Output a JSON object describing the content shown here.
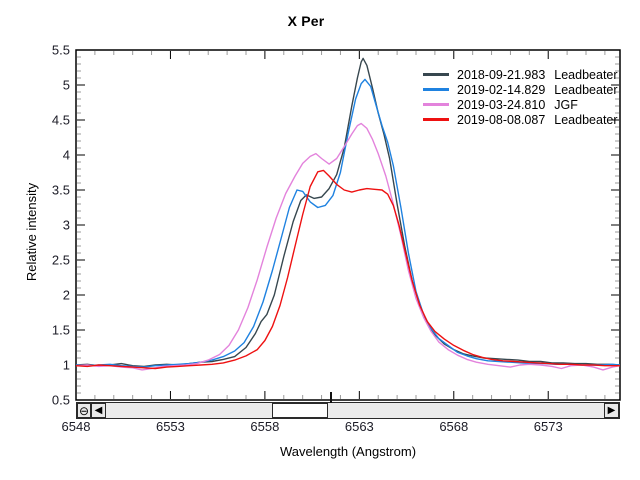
{
  "chart_data": {
    "type": "line",
    "title": "X Per",
    "xlabel": "Wavelength (Angstrom)",
    "ylabel": "Relative intensity",
    "xlim": [
      6548,
      6576.8
    ],
    "ylim": [
      0.5,
      5.5
    ],
    "x_ticks_major": [
      6548,
      6553,
      6558,
      6563,
      6568,
      6573
    ],
    "x_tick_minor_step": 1,
    "y_ticks_major": [
      0.5,
      1,
      1.5,
      2,
      2.5,
      3,
      3.5,
      4,
      4.5,
      5,
      5.5
    ],
    "y_tick_minor_step": 0.1,
    "grid": false,
    "legend_position": "top-right",
    "series": [
      {
        "name": "2018-09-21.983",
        "observer": "Leadbeater",
        "color": "#37474f",
        "points": [
          [
            6548.0,
            1.0
          ],
          [
            6548.6,
            1.01
          ],
          [
            6549.2,
            0.99
          ],
          [
            6549.8,
            1.0
          ],
          [
            6550.4,
            1.02
          ],
          [
            6551.0,
            0.99
          ],
          [
            6551.6,
            0.98
          ],
          [
            6552.2,
            1.0
          ],
          [
            6552.8,
            1.01
          ],
          [
            6553.4,
            1.0
          ],
          [
            6554.0,
            1.02
          ],
          [
            6554.6,
            1.04
          ],
          [
            6555.2,
            1.05
          ],
          [
            6555.8,
            1.08
          ],
          [
            6556.4,
            1.12
          ],
          [
            6557.0,
            1.25
          ],
          [
            6557.5,
            1.45
          ],
          [
            6557.8,
            1.62
          ],
          [
            6558.1,
            1.72
          ],
          [
            6558.5,
            2.0
          ],
          [
            6559.0,
            2.55
          ],
          [
            6559.5,
            3.05
          ],
          [
            6559.9,
            3.35
          ],
          [
            6560.2,
            3.43
          ],
          [
            6560.6,
            3.38
          ],
          [
            6561.0,
            3.4
          ],
          [
            6561.4,
            3.52
          ],
          [
            6561.8,
            3.72
          ],
          [
            6562.2,
            4.1
          ],
          [
            6562.6,
            4.7
          ],
          [
            6562.9,
            5.1
          ],
          [
            6563.1,
            5.33
          ],
          [
            6563.2,
            5.38
          ],
          [
            6563.4,
            5.28
          ],
          [
            6563.7,
            4.95
          ],
          [
            6564.0,
            4.6
          ],
          [
            6564.3,
            4.3
          ],
          [
            6564.6,
            3.95
          ],
          [
            6565.0,
            3.3
          ],
          [
            6565.4,
            2.7
          ],
          [
            6565.8,
            2.2
          ],
          [
            6566.2,
            1.85
          ],
          [
            6566.6,
            1.6
          ],
          [
            6567.0,
            1.43
          ],
          [
            6567.5,
            1.3
          ],
          [
            6568.0,
            1.22
          ],
          [
            6568.5,
            1.16
          ],
          [
            6569.0,
            1.13
          ],
          [
            6569.6,
            1.1
          ],
          [
            6570.2,
            1.09
          ],
          [
            6570.8,
            1.08
          ],
          [
            6571.4,
            1.07
          ],
          [
            6572.0,
            1.05
          ],
          [
            6572.6,
            1.05
          ],
          [
            6573.2,
            1.03
          ],
          [
            6573.8,
            1.03
          ],
          [
            6574.4,
            1.02
          ],
          [
            6575.0,
            1.02
          ],
          [
            6575.6,
            1.01
          ],
          [
            6576.2,
            1.01
          ],
          [
            6576.8,
            1.0
          ]
        ]
      },
      {
        "name": "2019-02-14.829",
        "observer": "Leadbeater",
        "color": "#1f82e0",
        "points": [
          [
            6548.0,
            1.0
          ],
          [
            6548.6,
            0.99
          ],
          [
            6549.2,
            1.0
          ],
          [
            6549.8,
            1.01
          ],
          [
            6550.4,
            0.99
          ],
          [
            6551.0,
            0.98
          ],
          [
            6551.6,
            0.97
          ],
          [
            6552.2,
            0.99
          ],
          [
            6552.8,
            1.0
          ],
          [
            6553.4,
            1.01
          ],
          [
            6554.0,
            1.02
          ],
          [
            6554.6,
            1.04
          ],
          [
            6555.2,
            1.07
          ],
          [
            6555.8,
            1.12
          ],
          [
            6556.4,
            1.2
          ],
          [
            6556.9,
            1.32
          ],
          [
            6557.4,
            1.55
          ],
          [
            6557.9,
            1.9
          ],
          [
            6558.4,
            2.35
          ],
          [
            6558.9,
            2.85
          ],
          [
            6559.3,
            3.25
          ],
          [
            6559.7,
            3.5
          ],
          [
            6560.0,
            3.48
          ],
          [
            6560.4,
            3.33
          ],
          [
            6560.8,
            3.25
          ],
          [
            6561.2,
            3.28
          ],
          [
            6561.6,
            3.42
          ],
          [
            6562.0,
            3.75
          ],
          [
            6562.4,
            4.3
          ],
          [
            6562.8,
            4.8
          ],
          [
            6563.1,
            5.02
          ],
          [
            6563.3,
            5.08
          ],
          [
            6563.6,
            4.98
          ],
          [
            6563.9,
            4.7
          ],
          [
            6564.2,
            4.42
          ],
          [
            6564.5,
            4.18
          ],
          [
            6564.8,
            3.85
          ],
          [
            6565.2,
            3.25
          ],
          [
            6565.6,
            2.6
          ],
          [
            6566.0,
            2.05
          ],
          [
            6566.4,
            1.72
          ],
          [
            6566.8,
            1.52
          ],
          [
            6567.2,
            1.38
          ],
          [
            6567.7,
            1.28
          ],
          [
            6568.2,
            1.18
          ],
          [
            6568.7,
            1.13
          ],
          [
            6569.2,
            1.09
          ],
          [
            6569.8,
            1.06
          ],
          [
            6570.4,
            1.05
          ],
          [
            6571.0,
            1.04
          ],
          [
            6571.6,
            1.03
          ],
          [
            6572.2,
            1.02
          ],
          [
            6572.8,
            1.02
          ],
          [
            6573.4,
            1.01
          ],
          [
            6574.0,
            1.01
          ],
          [
            6574.6,
            1.0
          ],
          [
            6575.2,
            1.0
          ],
          [
            6575.8,
            1.0
          ],
          [
            6576.4,
            1.01
          ],
          [
            6576.8,
            1.0
          ]
        ]
      },
      {
        "name": "2019-03-24.810",
        "observer": "JGF",
        "color": "#e383dc",
        "points": [
          [
            6548.0,
            0.99
          ],
          [
            6548.6,
            1.0
          ],
          [
            6549.2,
            0.98
          ],
          [
            6549.8,
            0.99
          ],
          [
            6550.4,
            0.97
          ],
          [
            6551.0,
            0.96
          ],
          [
            6551.5,
            0.93
          ],
          [
            6552.0,
            0.95
          ],
          [
            6552.6,
            0.98
          ],
          [
            6553.2,
            0.99
          ],
          [
            6553.8,
            1.0
          ],
          [
            6554.4,
            1.02
          ],
          [
            6555.0,
            1.07
          ],
          [
            6555.6,
            1.15
          ],
          [
            6556.1,
            1.28
          ],
          [
            6556.6,
            1.5
          ],
          [
            6557.1,
            1.82
          ],
          [
            6557.6,
            2.22
          ],
          [
            6558.1,
            2.68
          ],
          [
            6558.6,
            3.1
          ],
          [
            6559.1,
            3.45
          ],
          [
            6559.6,
            3.7
          ],
          [
            6560.0,
            3.88
          ],
          [
            6560.4,
            3.98
          ],
          [
            6560.7,
            4.02
          ],
          [
            6561.0,
            3.95
          ],
          [
            6561.4,
            3.87
          ],
          [
            6561.8,
            3.95
          ],
          [
            6562.2,
            4.12
          ],
          [
            6562.6,
            4.3
          ],
          [
            6562.9,
            4.42
          ],
          [
            6563.1,
            4.45
          ],
          [
            6563.4,
            4.38
          ],
          [
            6563.7,
            4.22
          ],
          [
            6564.0,
            4.02
          ],
          [
            6564.4,
            3.7
          ],
          [
            6564.8,
            3.3
          ],
          [
            6565.2,
            2.85
          ],
          [
            6565.6,
            2.35
          ],
          [
            6566.0,
            1.95
          ],
          [
            6566.4,
            1.68
          ],
          [
            6566.8,
            1.48
          ],
          [
            6567.2,
            1.33
          ],
          [
            6567.7,
            1.22
          ],
          [
            6568.2,
            1.14
          ],
          [
            6568.7,
            1.08
          ],
          [
            6569.2,
            1.04
          ],
          [
            6569.8,
            1.01
          ],
          [
            6570.4,
            0.99
          ],
          [
            6571.0,
            0.97
          ],
          [
            6571.5,
            1.0
          ],
          [
            6572.0,
            1.01
          ],
          [
            6572.6,
            1.0
          ],
          [
            6573.2,
            0.98
          ],
          [
            6573.7,
            0.95
          ],
          [
            6574.2,
            0.99
          ],
          [
            6574.8,
            1.0
          ],
          [
            6575.4,
            0.97
          ],
          [
            6575.9,
            0.93
          ],
          [
            6576.4,
            0.97
          ],
          [
            6576.8,
            0.99
          ]
        ]
      },
      {
        "name": "2019-08-08.087",
        "observer": "Leadbeater",
        "color": "#ee1111",
        "points": [
          [
            6548.0,
            0.99
          ],
          [
            6548.6,
            0.98
          ],
          [
            6549.2,
            1.0
          ],
          [
            6549.8,
            0.99
          ],
          [
            6550.4,
            0.98
          ],
          [
            6551.0,
            0.97
          ],
          [
            6551.6,
            0.96
          ],
          [
            6552.2,
            0.95
          ],
          [
            6552.8,
            0.97
          ],
          [
            6553.4,
            0.98
          ],
          [
            6554.0,
            0.99
          ],
          [
            6554.6,
            1.0
          ],
          [
            6555.2,
            1.01
          ],
          [
            6555.8,
            1.03
          ],
          [
            6556.4,
            1.07
          ],
          [
            6557.0,
            1.13
          ],
          [
            6557.6,
            1.22
          ],
          [
            6558.0,
            1.35
          ],
          [
            6558.4,
            1.55
          ],
          [
            6558.8,
            1.85
          ],
          [
            6559.2,
            2.25
          ],
          [
            6559.6,
            2.7
          ],
          [
            6560.0,
            3.15
          ],
          [
            6560.4,
            3.55
          ],
          [
            6560.8,
            3.76
          ],
          [
            6561.1,
            3.78
          ],
          [
            6561.4,
            3.7
          ],
          [
            6561.8,
            3.58
          ],
          [
            6562.2,
            3.5
          ],
          [
            6562.6,
            3.47
          ],
          [
            6563.0,
            3.5
          ],
          [
            6563.4,
            3.52
          ],
          [
            6563.8,
            3.51
          ],
          [
            6564.2,
            3.5
          ],
          [
            6564.5,
            3.44
          ],
          [
            6564.8,
            3.28
          ],
          [
            6565.1,
            3.0
          ],
          [
            6565.4,
            2.65
          ],
          [
            6565.8,
            2.2
          ],
          [
            6566.2,
            1.85
          ],
          [
            6566.6,
            1.62
          ],
          [
            6567.0,
            1.48
          ],
          [
            6567.5,
            1.37
          ],
          [
            6568.0,
            1.28
          ],
          [
            6568.5,
            1.21
          ],
          [
            6569.0,
            1.15
          ],
          [
            6569.5,
            1.11
          ],
          [
            6570.0,
            1.08
          ],
          [
            6570.6,
            1.06
          ],
          [
            6571.2,
            1.05
          ],
          [
            6571.8,
            1.04
          ],
          [
            6572.4,
            1.03
          ],
          [
            6573.0,
            1.02
          ],
          [
            6573.6,
            1.01
          ],
          [
            6574.2,
            1.01
          ],
          [
            6574.8,
            1.0
          ],
          [
            6575.4,
            1.0
          ],
          [
            6576.0,
            0.99
          ],
          [
            6576.8,
            0.99
          ]
        ]
      }
    ]
  },
  "scrollbar": {
    "zoom_out_glyph": "⊖",
    "left_arrow_glyph": "◀",
    "right_arrow_glyph": "▶"
  }
}
